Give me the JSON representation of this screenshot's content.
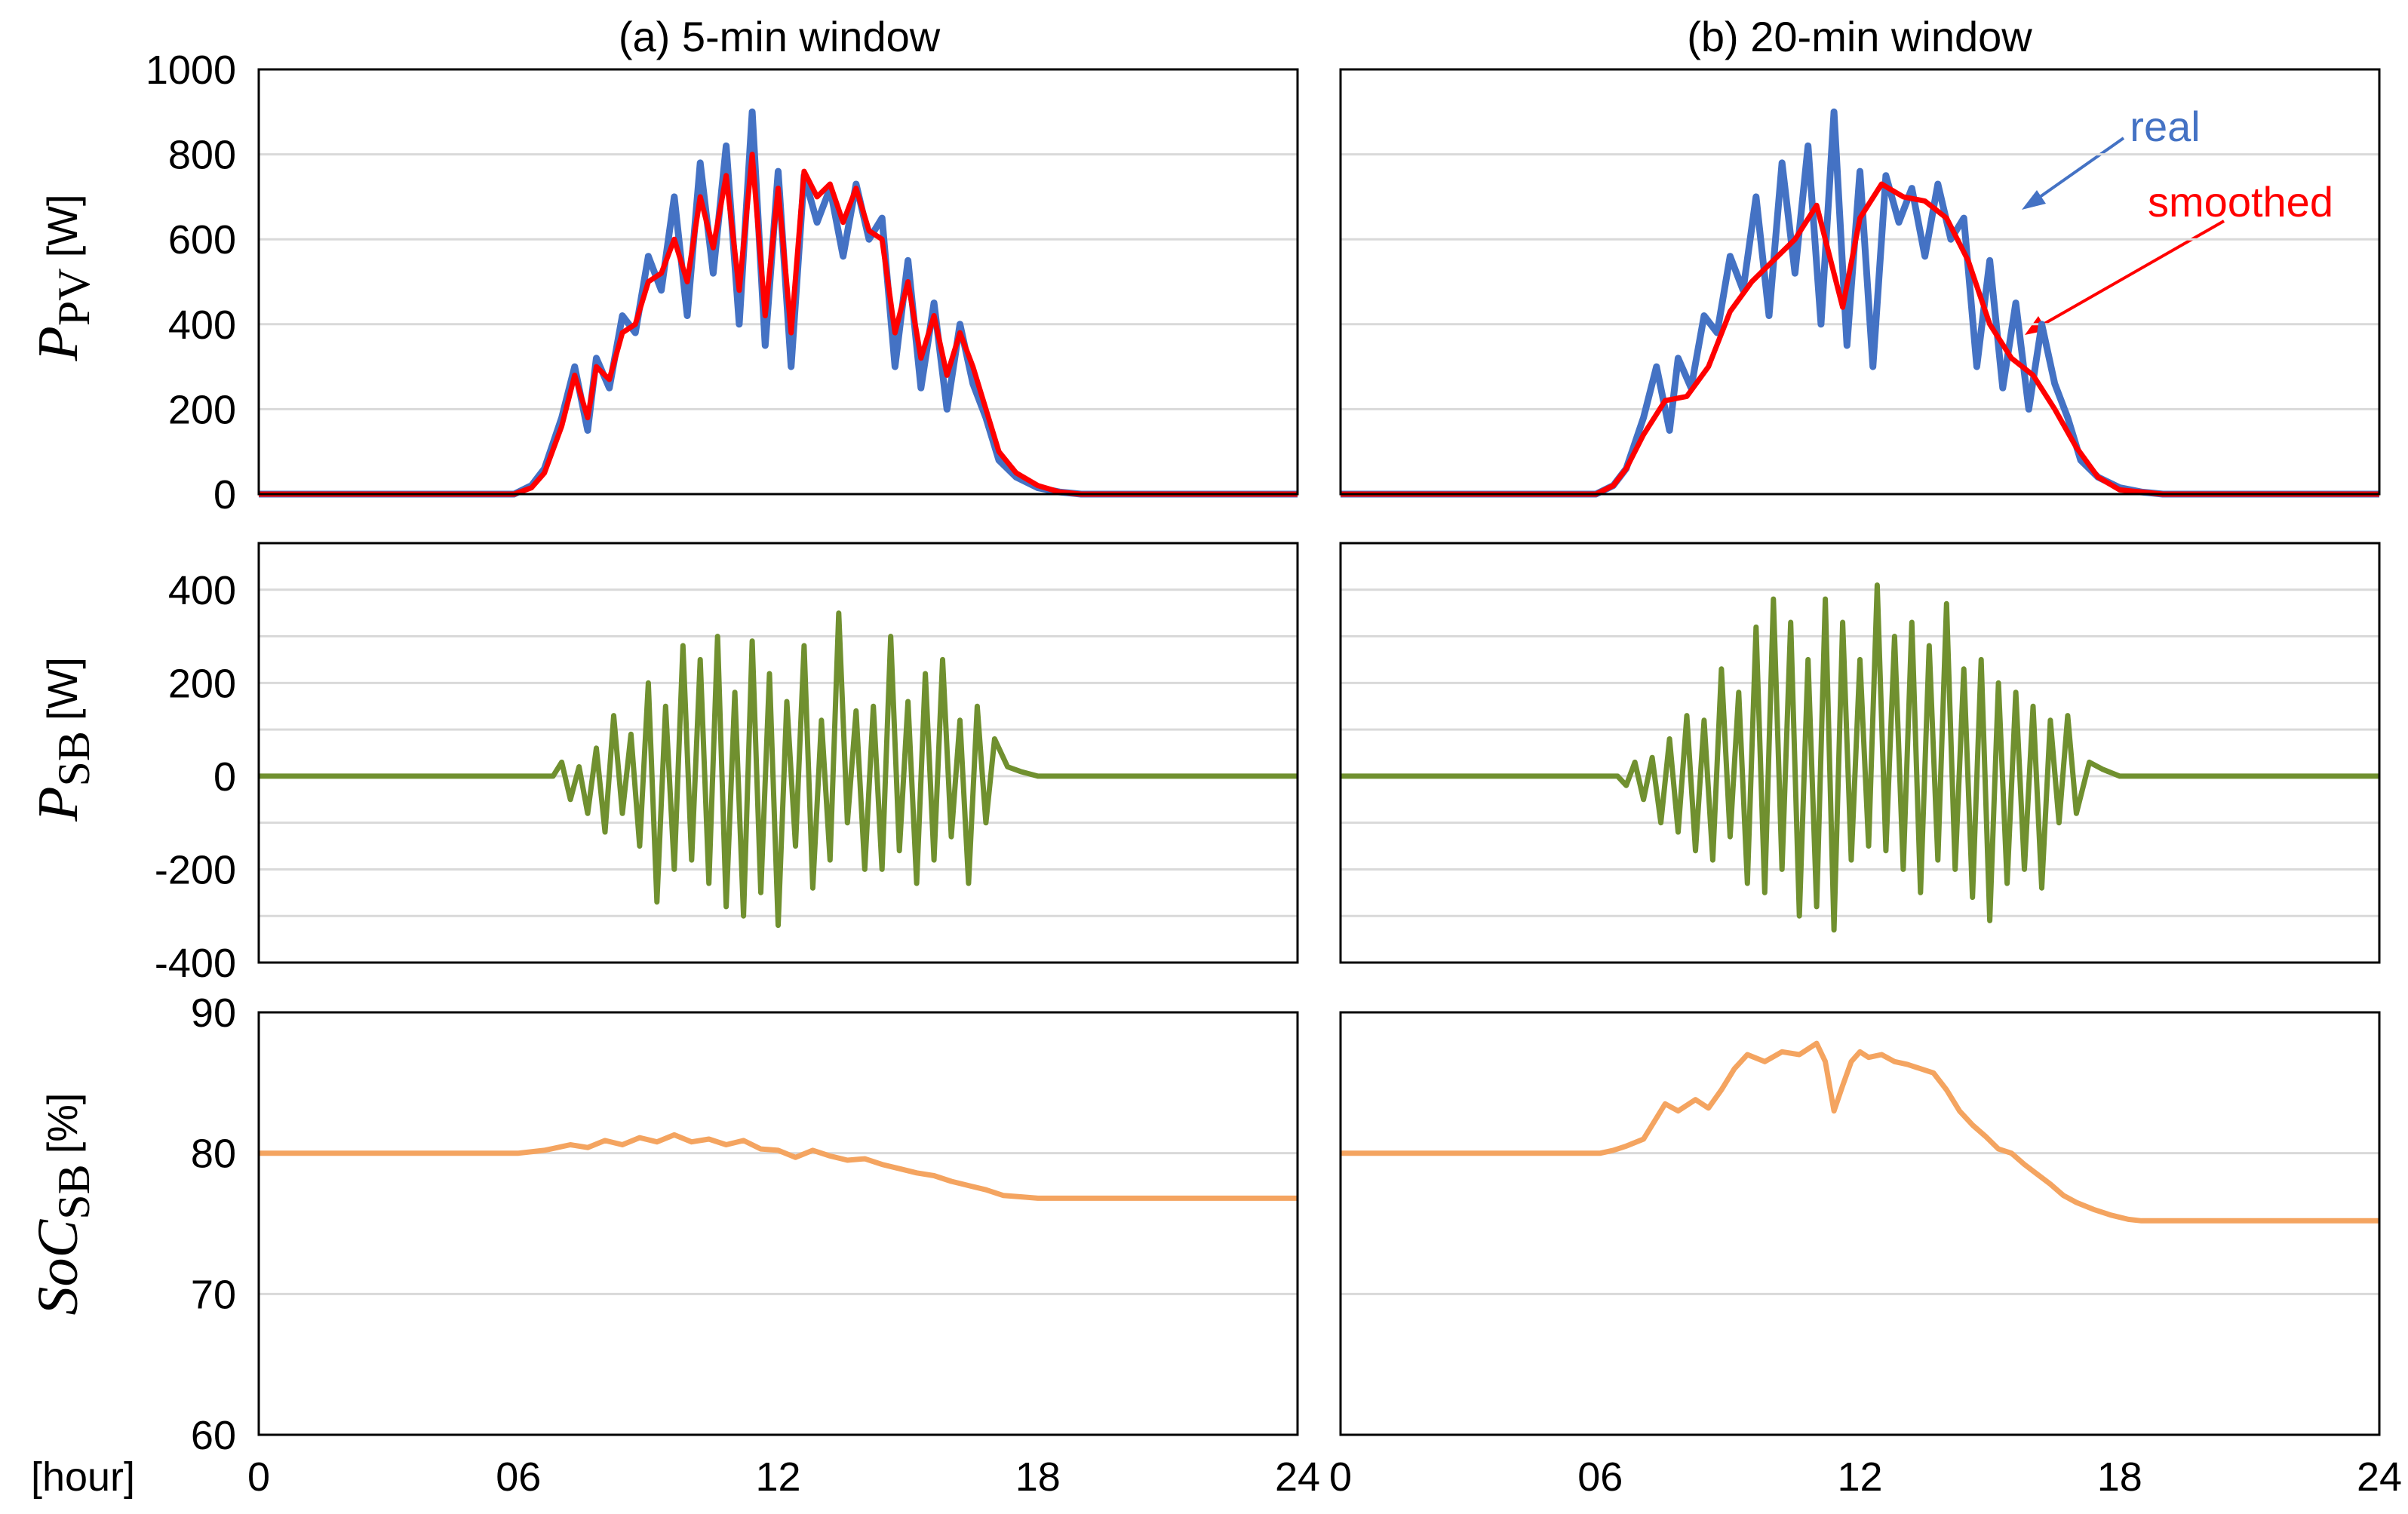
{
  "x_unit_label": "[hour]",
  "columns": [
    {
      "id": "a",
      "title": "(a) 5-min window"
    },
    {
      "id": "b",
      "title": "(b) 20-min window"
    }
  ],
  "ylabels": {
    "pv": {
      "main": "P",
      "sub": "PV",
      "unit": "[W]"
    },
    "sb": {
      "main": "P",
      "sub": "SB",
      "unit": "[W]"
    },
    "soc": {
      "main": "SoC",
      "sub": "SB",
      "unit": "[%]"
    }
  },
  "annotations": {
    "real": "real",
    "smoothed": "smoothed"
  },
  "colors": {
    "real": "#4472C4",
    "smoothed": "#FF0000",
    "sb": "#70902F",
    "soc": "#F4A460",
    "grid": "#D9D9D9"
  },
  "chart_data": [
    {
      "type": "line",
      "id": "pv-a",
      "title": "(a) 5-min window",
      "xlabel": "[hour]",
      "ylabel": "P_PV [W]",
      "xlim": [
        0,
        24
      ],
      "ylim": [
        0,
        1000
      ],
      "xticks": [
        "0",
        "06",
        "12",
        "18",
        "24"
      ],
      "yticks": [
        "0",
        "200",
        "400",
        "600",
        "800",
        "1000"
      ],
      "series": [
        {
          "name": "real",
          "x": [
            0,
            5.9,
            6.3,
            6.6,
            7.0,
            7.3,
            7.6,
            7.8,
            8.1,
            8.4,
            8.7,
            9.0,
            9.3,
            9.6,
            9.9,
            10.2,
            10.5,
            10.8,
            11.1,
            11.4,
            11.7,
            12.0,
            12.3,
            12.6,
            12.9,
            13.2,
            13.5,
            13.8,
            14.1,
            14.4,
            14.7,
            15.0,
            15.3,
            15.6,
            15.9,
            16.2,
            16.5,
            16.8,
            17.1,
            17.5,
            18.0,
            18.5,
            19.0,
            24
          ],
          "y": [
            0,
            0,
            20,
            60,
            180,
            300,
            150,
            320,
            250,
            420,
            380,
            560,
            480,
            700,
            420,
            780,
            520,
            820,
            400,
            900,
            350,
            760,
            300,
            750,
            640,
            720,
            560,
            730,
            600,
            650,
            300,
            550,
            250,
            450,
            200,
            400,
            260,
            180,
            80,
            40,
            15,
            5,
            0,
            0
          ]
        },
        {
          "name": "smoothed",
          "x": [
            0,
            5.9,
            6.3,
            6.6,
            7.0,
            7.3,
            7.6,
            7.8,
            8.1,
            8.4,
            8.7,
            9.0,
            9.3,
            9.6,
            9.9,
            10.2,
            10.5,
            10.8,
            11.1,
            11.4,
            11.7,
            12.0,
            12.3,
            12.6,
            12.9,
            13.2,
            13.5,
            13.8,
            14.1,
            14.4,
            14.7,
            15.0,
            15.3,
            15.6,
            15.9,
            16.2,
            16.5,
            16.8,
            17.1,
            17.5,
            18.0,
            18.5,
            19.0,
            24
          ],
          "y": [
            0,
            0,
            15,
            50,
            160,
            280,
            180,
            300,
            270,
            380,
            400,
            500,
            520,
            600,
            500,
            700,
            580,
            750,
            480,
            800,
            420,
            720,
            380,
            760,
            700,
            730,
            640,
            720,
            620,
            600,
            380,
            500,
            320,
            420,
            280,
            380,
            300,
            200,
            100,
            50,
            20,
            5,
            0,
            0
          ]
        }
      ]
    },
    {
      "type": "line",
      "id": "pv-b",
      "title": "(b) 20-min window",
      "xlabel": "[hour]",
      "ylabel": "P_PV [W]",
      "xlim": [
        0,
        24
      ],
      "ylim": [
        0,
        1000
      ],
      "xticks": [
        "0",
        "06",
        "12",
        "18",
        "24"
      ],
      "yticks": [
        "0",
        "200",
        "400",
        "600",
        "800",
        "1000"
      ],
      "series": [
        {
          "name": "real",
          "x": [
            0,
            5.9,
            6.3,
            6.6,
            7.0,
            7.3,
            7.6,
            7.8,
            8.1,
            8.4,
            8.7,
            9.0,
            9.3,
            9.6,
            9.9,
            10.2,
            10.5,
            10.8,
            11.1,
            11.4,
            11.7,
            12.0,
            12.3,
            12.6,
            12.9,
            13.2,
            13.5,
            13.8,
            14.1,
            14.4,
            14.7,
            15.0,
            15.3,
            15.6,
            15.9,
            16.2,
            16.5,
            16.8,
            17.1,
            17.5,
            18.0,
            18.5,
            19.0,
            24
          ],
          "y": [
            0,
            0,
            20,
            60,
            180,
            300,
            150,
            320,
            250,
            420,
            380,
            560,
            480,
            700,
            420,
            780,
            520,
            820,
            400,
            900,
            350,
            760,
            300,
            750,
            640,
            720,
            560,
            730,
            600,
            650,
            300,
            550,
            250,
            450,
            200,
            400,
            260,
            180,
            80,
            40,
            15,
            5,
            0,
            0
          ]
        },
        {
          "name": "smoothed",
          "x": [
            0,
            5.9,
            6.3,
            6.6,
            7.0,
            7.5,
            8.0,
            8.5,
            9.0,
            9.5,
            10.0,
            10.5,
            11.0,
            11.3,
            11.6,
            12.0,
            12.5,
            13.0,
            13.5,
            14.0,
            14.5,
            15.0,
            15.5,
            16.0,
            16.5,
            17.0,
            17.5,
            18.0,
            18.5,
            19.0,
            24
          ],
          "y": [
            0,
            0,
            20,
            60,
            140,
            220,
            230,
            300,
            430,
            500,
            550,
            600,
            680,
            560,
            440,
            650,
            730,
            700,
            690,
            650,
            550,
            400,
            320,
            280,
            200,
            110,
            40,
            10,
            5,
            0,
            0
          ]
        }
      ]
    },
    {
      "type": "line",
      "id": "sb-a",
      "xlabel": "[hour]",
      "ylabel": "P_SB [W]",
      "xlim": [
        0,
        24
      ],
      "ylim": [
        -400,
        500
      ],
      "xticks": [
        "0",
        "06",
        "12",
        "18",
        "24"
      ],
      "yticks": [
        "-400",
        "-200",
        "0",
        "200",
        "400"
      ],
      "series": [
        {
          "name": "P_SB",
          "x": [
            0,
            6.8,
            7.0,
            7.2,
            7.4,
            7.6,
            7.8,
            8.0,
            8.2,
            8.4,
            8.6,
            8.8,
            9.0,
            9.2,
            9.4,
            9.6,
            9.8,
            10.0,
            10.2,
            10.4,
            10.6,
            10.8,
            11.0,
            11.2,
            11.4,
            11.6,
            11.8,
            12.0,
            12.2,
            12.4,
            12.6,
            12.8,
            13.0,
            13.2,
            13.4,
            13.6,
            13.8,
            14.0,
            14.2,
            14.4,
            14.6,
            14.8,
            15.0,
            15.2,
            15.4,
            15.6,
            15.8,
            16.0,
            16.2,
            16.4,
            16.6,
            16.8,
            17.0,
            17.3,
            17.6,
            18.0,
            24
          ],
          "y": [
            0,
            0,
            30,
            -50,
            20,
            -80,
            60,
            -120,
            130,
            -80,
            90,
            -150,
            200,
            -270,
            150,
            -200,
            280,
            -180,
            250,
            -230,
            300,
            -280,
            180,
            -300,
            290,
            -250,
            220,
            -320,
            160,
            -150,
            280,
            -240,
            120,
            -180,
            350,
            -100,
            140,
            -200,
            150,
            -200,
            300,
            -160,
            160,
            -230,
            220,
            -180,
            250,
            -130,
            120,
            -230,
            150,
            -100,
            80,
            20,
            10,
            0,
            0
          ]
        }
      ]
    },
    {
      "type": "line",
      "id": "sb-b",
      "xlabel": "[hour]",
      "ylabel": "P_SB [W]",
      "xlim": [
        0,
        24
      ],
      "ylim": [
        -400,
        500
      ],
      "xticks": [
        "0",
        "06",
        "12",
        "18",
        "24"
      ],
      "yticks": [
        "-400",
        "-200",
        "0",
        "200",
        "400"
      ],
      "series": [
        {
          "name": "P_SB",
          "x": [
            0,
            6.4,
            6.6,
            6.8,
            7.0,
            7.2,
            7.4,
            7.6,
            7.8,
            8.0,
            8.2,
            8.4,
            8.6,
            8.8,
            9.0,
            9.2,
            9.4,
            9.6,
            9.8,
            10.0,
            10.2,
            10.4,
            10.6,
            10.8,
            11.0,
            11.2,
            11.4,
            11.6,
            11.8,
            12.0,
            12.2,
            12.4,
            12.6,
            12.8,
            13.0,
            13.2,
            13.4,
            13.6,
            13.8,
            14.0,
            14.2,
            14.4,
            14.6,
            14.8,
            15.0,
            15.2,
            15.4,
            15.6,
            15.8,
            16.0,
            16.2,
            16.4,
            16.6,
            16.8,
            17.0,
            17.3,
            17.6,
            18.0,
            24
          ],
          "y": [
            0,
            0,
            -20,
            30,
            -50,
            40,
            -100,
            80,
            -120,
            130,
            -160,
            120,
            -180,
            230,
            -130,
            180,
            -230,
            320,
            -250,
            380,
            -200,
            330,
            -300,
            250,
            -280,
            380,
            -330,
            330,
            -180,
            250,
            -150,
            410,
            -160,
            300,
            -200,
            330,
            -250,
            280,
            -180,
            370,
            -200,
            230,
            -260,
            250,
            -310,
            200,
            -230,
            180,
            -200,
            150,
            -240,
            120,
            -100,
            130,
            -80,
            30,
            15,
            0,
            0
          ]
        }
      ]
    },
    {
      "type": "line",
      "id": "soc-a",
      "xlabel": "[hour]",
      "ylabel": "SoC_SB [%]",
      "xlim": [
        0,
        24
      ],
      "ylim": [
        60,
        90
      ],
      "xticks": [
        "0",
        "06",
        "12",
        "18",
        "24"
      ],
      "yticks": [
        "60",
        "70",
        "80",
        "90"
      ],
      "series": [
        {
          "name": "SoC_SB",
          "x": [
            0,
            6.0,
            6.6,
            7.2,
            7.6,
            8.0,
            8.4,
            8.8,
            9.2,
            9.6,
            10.0,
            10.4,
            10.8,
            11.2,
            11.6,
            12.0,
            12.4,
            12.8,
            13.2,
            13.6,
            14.0,
            14.4,
            14.8,
            15.2,
            15.6,
            16.0,
            16.4,
            16.8,
            17.2,
            17.6,
            18.0,
            24
          ],
          "y": [
            80.0,
            80.0,
            80.2,
            80.6,
            80.4,
            80.9,
            80.6,
            81.1,
            80.8,
            81.3,
            80.8,
            81.0,
            80.6,
            80.9,
            80.3,
            80.2,
            79.7,
            80.2,
            79.8,
            79.5,
            79.6,
            79.2,
            78.9,
            78.6,
            78.4,
            78.0,
            77.7,
            77.4,
            77.0,
            76.9,
            76.8,
            76.8
          ]
        }
      ]
    },
    {
      "type": "line",
      "id": "soc-b",
      "xlabel": "[hour]",
      "ylabel": "SoC_SB [%]",
      "xlim": [
        0,
        24
      ],
      "ylim": [
        60,
        90
      ],
      "xticks": [
        "0",
        "06",
        "12",
        "18",
        "24"
      ],
      "yticks": [
        "60",
        "70",
        "80",
        "90"
      ],
      "series": [
        {
          "name": "SoC_SB",
          "x": [
            0,
            6.0,
            6.3,
            6.6,
            7.0,
            7.2,
            7.5,
            7.8,
            8.2,
            8.5,
            8.8,
            9.1,
            9.4,
            9.8,
            10.2,
            10.6,
            11.0,
            11.2,
            11.4,
            11.6,
            11.8,
            12.0,
            12.2,
            12.5,
            12.8,
            13.1,
            13.4,
            13.7,
            14.0,
            14.3,
            14.6,
            14.9,
            15.2,
            15.5,
            15.8,
            16.1,
            16.4,
            16.7,
            17.0,
            17.4,
            17.8,
            18.2,
            18.5,
            24
          ],
          "y": [
            80.0,
            80.0,
            80.2,
            80.5,
            81.0,
            82.0,
            83.5,
            83.0,
            83.8,
            83.2,
            84.5,
            86.0,
            87.0,
            86.5,
            87.2,
            87.0,
            87.8,
            86.5,
            83.0,
            84.8,
            86.5,
            87.2,
            86.8,
            87.0,
            86.5,
            86.3,
            86.0,
            85.7,
            84.5,
            83.0,
            82.0,
            81.2,
            80.3,
            80.0,
            79.2,
            78.5,
            77.8,
            77.0,
            76.5,
            76.0,
            75.6,
            75.3,
            75.2,
            75.2
          ]
        }
      ]
    }
  ]
}
